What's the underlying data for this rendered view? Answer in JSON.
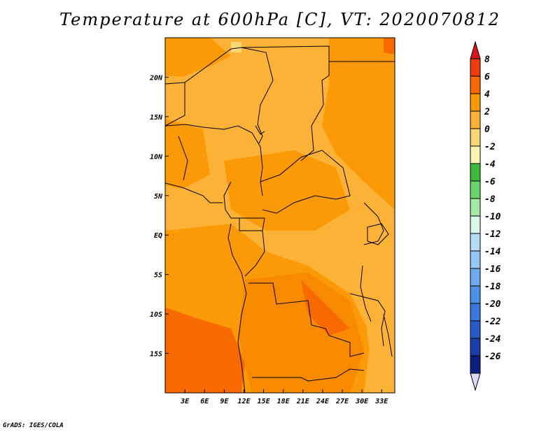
{
  "title": "Temperature at 600hPa [C], VT: 2020070812",
  "credit": "GrADS: IGES/COLA",
  "map": {
    "lon_ticks": [
      "3E",
      "6E",
      "9E",
      "12E",
      "15E",
      "18E",
      "21E",
      "24E",
      "27E",
      "30E",
      "33E"
    ],
    "lat_ticks": [
      "20N",
      "15N",
      "10N",
      "5N",
      "EQ",
      "5S",
      "10S",
      "15S"
    ],
    "lon_range": [
      0,
      35
    ],
    "lat_range": [
      -20,
      25
    ]
  },
  "colorbar": {
    "labels": [
      "8",
      "6",
      "4",
      "2",
      "0",
      "-2",
      "-4",
      "-6",
      "-8",
      "-10",
      "-12",
      "-14",
      "-16",
      "-18",
      "-20",
      "-22",
      "-24",
      "-26"
    ],
    "colors": [
      "#d7191c",
      "#f03b0c",
      "#f86a00",
      "#fb9a06",
      "#fbb237",
      "#fcd875",
      "#fff6b0",
      "#3cbb3c",
      "#6bd46b",
      "#a6e8a6",
      "#dcf6ea",
      "#b4dcf8",
      "#96c8f5",
      "#6eacf0",
      "#4e92e8",
      "#3a78dc",
      "#2a5cc8",
      "#1a3eaa",
      "#0d1e80",
      "#d9d9f5"
    ]
  }
}
